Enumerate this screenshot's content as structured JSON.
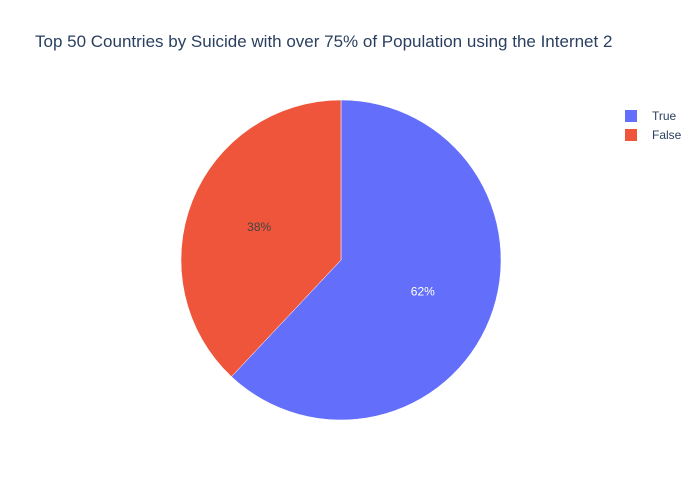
{
  "chart_data": {
    "type": "pie",
    "title": "Top 50 Countries by Suicide with over 75% of Population using the Internet 2",
    "labels": [
      "True",
      "False"
    ],
    "values": [
      62,
      38
    ],
    "text_labels": [
      "62%",
      "38%"
    ],
    "colors": [
      "#636efa",
      "#ef553b"
    ],
    "legend_position": "top-right"
  },
  "legend": {
    "items": [
      {
        "label": "True",
        "color": "#636efa"
      },
      {
        "label": "False",
        "color": "#ef553b"
      }
    ]
  }
}
